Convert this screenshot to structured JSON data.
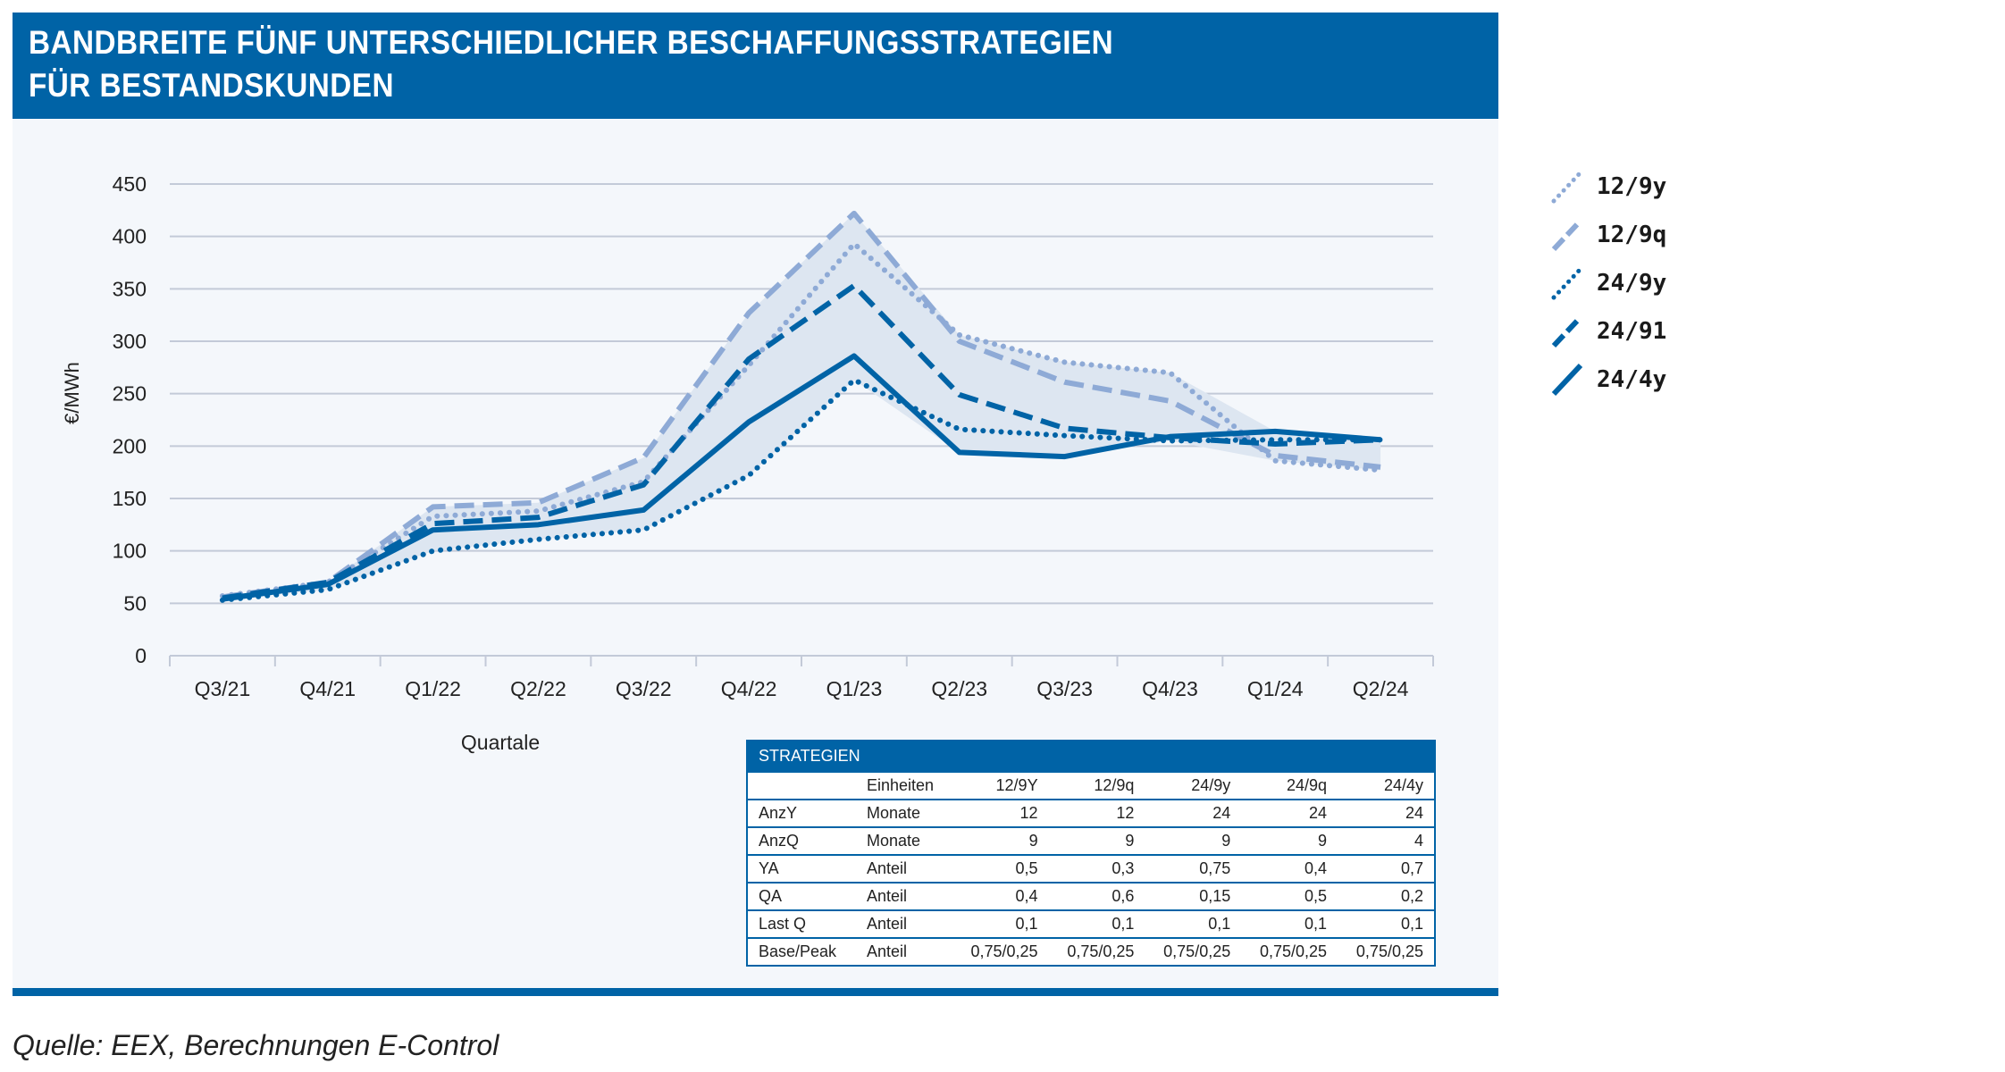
{
  "title_lines": [
    "BANDBREITE FÜNF UNTERSCHIEDLICHER BESCHAFFUNGSSTRATEGIEN",
    "FÜR BESTANDSKUNDEN"
  ],
  "source": "Quelle: EEX, Berechnungen E-Control",
  "colors": {
    "brand": "#0063a6",
    "light": "#8eaad6",
    "band": "#dde6f1",
    "panel": "#f4f7fb"
  },
  "chart_data": {
    "type": "line",
    "xlabel": "Quartale",
    "ylabel": "€/MWh",
    "ylim": [
      0,
      450
    ],
    "yticks": [
      0,
      50,
      100,
      150,
      200,
      250,
      300,
      350,
      400,
      450
    ],
    "grid": true,
    "legend_position": "right",
    "categories": [
      "Q3/21",
      "Q4/21",
      "Q1/22",
      "Q2/22",
      "Q3/22",
      "Q4/22",
      "Q1/23",
      "Q2/23",
      "Q3/23",
      "Q4/23",
      "Q1/24",
      "Q2/24"
    ],
    "band": "shaded range between minimum and maximum of all strategies",
    "series": [
      {
        "name": "12/9y",
        "style": "dotted",
        "color": "#8eaad6",
        "values": [
          57,
          70,
          133,
          138,
          166,
          277,
          393,
          306,
          280,
          270,
          186,
          177
        ]
      },
      {
        "name": "12/9q",
        "style": "dashed",
        "color": "#8eaad6",
        "values": [
          56,
          70,
          142,
          146,
          189,
          327,
          422,
          300,
          261,
          243,
          191,
          180
        ]
      },
      {
        "name": "24/9y",
        "style": "dotted",
        "color": "#0063a6",
        "values": [
          53,
          63,
          100,
          111,
          120,
          172,
          263,
          216,
          210,
          205,
          206,
          206
        ]
      },
      {
        "name": "24/91",
        "style": "dashed",
        "color": "#0063a6",
        "values": [
          55,
          70,
          126,
          132,
          163,
          283,
          353,
          249,
          217,
          208,
          202,
          206
        ]
      },
      {
        "name": "24/4y",
        "style": "solid",
        "color": "#0063a6",
        "values": [
          54,
          68,
          120,
          125,
          139,
          223,
          286,
          194,
          190,
          209,
          214,
          206
        ]
      }
    ]
  },
  "table": {
    "caption": "STRATEGIEN",
    "header": [
      "",
      "Einheiten",
      "12/9Y",
      "12/9q",
      "24/9y",
      "24/9q",
      "24/4y"
    ],
    "rows": [
      [
        "AnzY",
        "Monate",
        "12",
        "12",
        "24",
        "24",
        "24"
      ],
      [
        "AnzQ",
        "Monate",
        "9",
        "9",
        "9",
        "9",
        "4"
      ],
      [
        "YA",
        "Anteil",
        "0,5",
        "0,3",
        "0,75",
        "0,4",
        "0,7"
      ],
      [
        "QA",
        "Anteil",
        "0,4",
        "0,6",
        "0,15",
        "0,5",
        "0,2"
      ],
      [
        "Last Q",
        "Anteil",
        "0,1",
        "0,1",
        "0,1",
        "0,1",
        "0,1"
      ],
      [
        "Base/Peak",
        "Anteil",
        "0,75/0,25",
        "0,75/0,25",
        "0,75/0,25",
        "0,75/0,25",
        "0,75/0,25"
      ]
    ]
  }
}
